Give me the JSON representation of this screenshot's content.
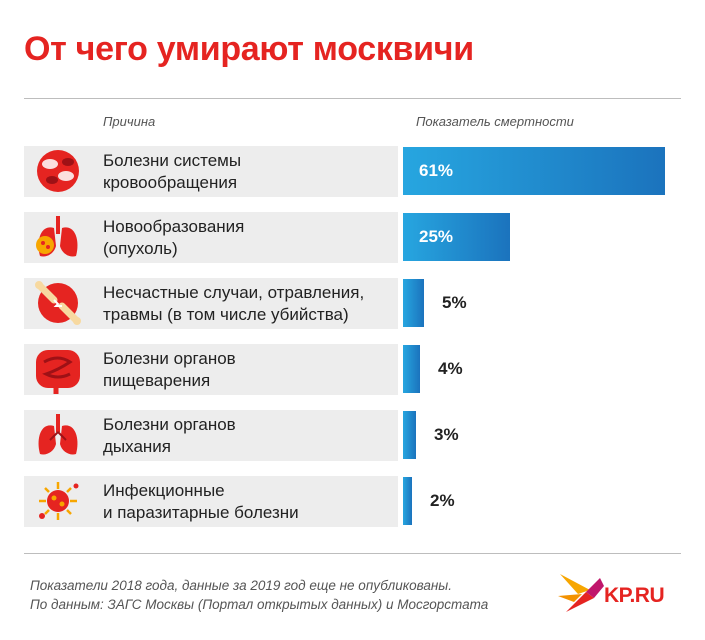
{
  "title": "От чего умирают москвичи",
  "headers": {
    "cause": "Причина",
    "rate": "Показатель смертности"
  },
  "chart_data": {
    "type": "bar",
    "categories": [
      "Болезни системы кровообращения",
      "Новообразования (опухоль)",
      "Несчастные случаи, отравления, травмы (в том числе убийства)",
      "Болезни органов пищеварения",
      "Болезни органов дыхания",
      "Инфекционные и паразитарные болезни"
    ],
    "values": [
      61,
      25,
      5,
      4,
      3,
      2
    ],
    "value_labels": [
      "61%",
      "25%",
      "5%",
      "4%",
      "3%",
      "2%"
    ],
    "xlim": [
      0,
      61
    ]
  },
  "rows": [
    {
      "line1": "Болезни системы",
      "line2": "кровообращения",
      "icon": "blood-cells-icon"
    },
    {
      "line1": "Новообразования",
      "line2": "(опухоль)",
      "icon": "tumor-lungs-icon"
    },
    {
      "line1": "Несчастные случаи, отравления,",
      "line2": "травмы (в том числе убийства)",
      "icon": "broken-bone-icon"
    },
    {
      "line1": "Болезни органов",
      "line2": "пищеварения",
      "icon": "intestines-icon"
    },
    {
      "line1": "Болезни органов",
      "line2": "дыхания",
      "icon": "lungs-icon"
    },
    {
      "line1": "Инфекционные",
      "line2": "и паразитарные болезни",
      "icon": "virus-icon"
    }
  ],
  "footnote": {
    "line1": "Показатели 2018 года, данные за 2019 год еще не опубликованы.",
    "line2": "По данным: ЗАГС Москвы (Портал открытых данных) и Мосгорстата"
  },
  "logo": {
    "text": "KP.RU"
  },
  "colors": {
    "title": "#e52421",
    "bar_start": "#27a6e0",
    "bar_end": "#1b73bd",
    "row_bg": "#ededed",
    "icon": "#e52421"
  }
}
